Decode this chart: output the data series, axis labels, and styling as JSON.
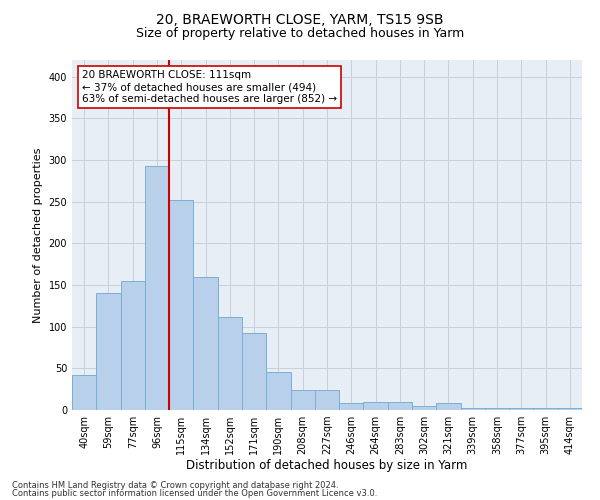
{
  "title1": "20, BRAEWORTH CLOSE, YARM, TS15 9SB",
  "title2": "Size of property relative to detached houses in Yarm",
  "xlabel": "Distribution of detached houses by size in Yarm",
  "ylabel": "Number of detached properties",
  "categories": [
    "40sqm",
    "59sqm",
    "77sqm",
    "96sqm",
    "115sqm",
    "134sqm",
    "152sqm",
    "171sqm",
    "190sqm",
    "208sqm",
    "227sqm",
    "246sqm",
    "264sqm",
    "283sqm",
    "302sqm",
    "321sqm",
    "339sqm",
    "358sqm",
    "377sqm",
    "395sqm",
    "414sqm"
  ],
  "values": [
    42,
    140,
    155,
    293,
    252,
    160,
    112,
    92,
    46,
    24,
    24,
    8,
    10,
    10,
    5,
    8,
    3,
    3,
    3,
    3,
    3
  ],
  "bar_color": "#b8d0ea",
  "bar_edge_color": "#7aafd4",
  "vline_x": 4,
  "vline_color": "#cc0000",
  "annotation_line1": "20 BRAEWORTH CLOSE: 111sqm",
  "annotation_line2": "← 37% of detached houses are smaller (494)",
  "annotation_line3": "63% of semi-detached houses are larger (852) →",
  "annotation_box_color": "#ffffff",
  "annotation_box_edgecolor": "#cc0000",
  "ylim": [
    0,
    420
  ],
  "yticks": [
    0,
    50,
    100,
    150,
    200,
    250,
    300,
    350,
    400
  ],
  "grid_color": "#c8d0dc",
  "background_color": "#e8eef5",
  "footer1": "Contains HM Land Registry data © Crown copyright and database right 2024.",
  "footer2": "Contains public sector information licensed under the Open Government Licence v3.0.",
  "title1_fontsize": 10,
  "title2_fontsize": 9,
  "tick_fontsize": 7,
  "ylabel_fontsize": 8,
  "xlabel_fontsize": 8.5,
  "annotation_fontsize": 7.5,
  "footer_fontsize": 6
}
